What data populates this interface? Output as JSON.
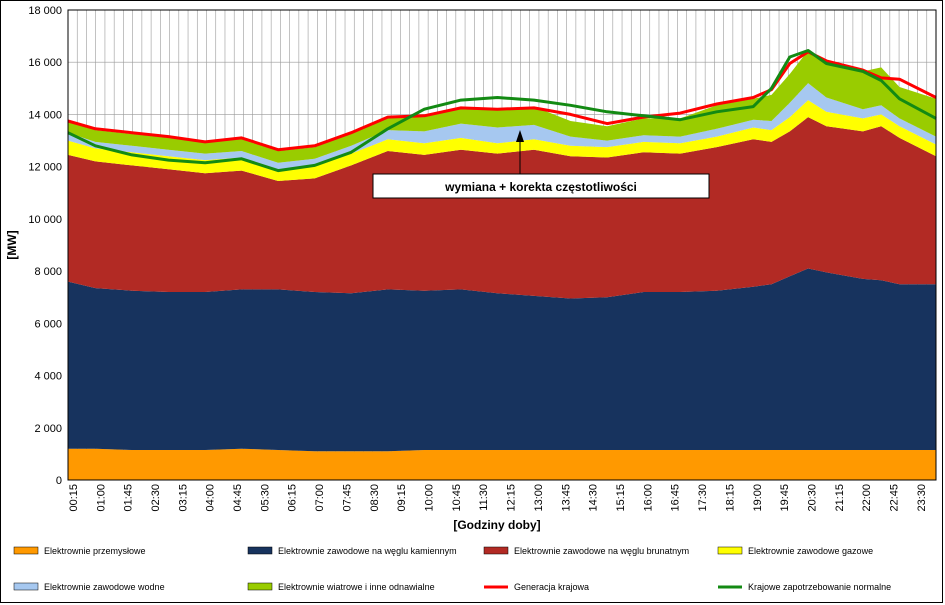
{
  "chart_data": {
    "type": "area",
    "ylabel": "[MW]",
    "xlabel": "[Godziny doby]",
    "ylim": [
      0,
      18000
    ],
    "yticks": [
      0,
      2000,
      4000,
      6000,
      8000,
      10000,
      12000,
      14000,
      16000,
      18000
    ],
    "ytick_labels": [
      "0",
      "2 000",
      "4 000",
      "6 000",
      "8 000",
      "10 000",
      "12 000",
      "14 000",
      "16 000",
      "18 000"
    ],
    "xtick_labels": [
      "00:15",
      "01:00",
      "01:45",
      "02:30",
      "03:15",
      "04:00",
      "04:45",
      "05:30",
      "06:15",
      "07:00",
      "07:45",
      "08:30",
      "09:15",
      "10:00",
      "10:45",
      "11:30",
      "12:15",
      "13:00",
      "13:45",
      "14:30",
      "15:15",
      "16:00",
      "16:45",
      "17:30",
      "18:15",
      "19:00",
      "19:45",
      "20:30",
      "21:15",
      "22:00",
      "22:45",
      "23:30"
    ],
    "x_hours": [
      0.25,
      1,
      2,
      3,
      4,
      5,
      6,
      7,
      8,
      9,
      10,
      11,
      12,
      13,
      14,
      15,
      16,
      17,
      18,
      19,
      19.5,
      20,
      20.5,
      21,
      22,
      22.5,
      23,
      24
    ],
    "stacks": [
      {
        "name": "Elektrownie przemysłowe",
        "color": "#ff9900",
        "values": [
          1200,
          1200,
          1150,
          1150,
          1150,
          1200,
          1150,
          1100,
          1100,
          1100,
          1150,
          1150,
          1150,
          1150,
          1150,
          1150,
          1150,
          1150,
          1150,
          1150,
          1150,
          1150,
          1150,
          1150,
          1150,
          1150,
          1150,
          1150
        ]
      },
      {
        "name": "Elektrownie zawodowe na węglu kamiennym",
        "color": "#17335e",
        "values": [
          6400,
          6150,
          6100,
          6050,
          6050,
          6100,
          6150,
          6100,
          6050,
          6200,
          6100,
          6150,
          6000,
          5900,
          5800,
          5850,
          6050,
          6050,
          6100,
          6250,
          6350,
          6650,
          6950,
          6800,
          6550,
          6500,
          6350,
          6350
        ]
      },
      {
        "name": "Elektrownie zawodowe na węglu brunatnym",
        "color": "#b22a24",
        "values": [
          4850,
          4850,
          4800,
          4700,
          4550,
          4550,
          4150,
          4350,
          4900,
          5300,
          5200,
          5350,
          5350,
          5600,
          5450,
          5350,
          5350,
          5300,
          5500,
          5650,
          5450,
          5550,
          5800,
          5600,
          5650,
          5900,
          5600,
          4900
        ]
      },
      {
        "name": "Elektrownie zawodowe gazowe",
        "color": "#ffff00",
        "values": [
          550,
          500,
          500,
          500,
          500,
          500,
          450,
          500,
          450,
          450,
          450,
          450,
          400,
          400,
          400,
          400,
          400,
          400,
          400,
          450,
          450,
          550,
          650,
          550,
          500,
          450,
          450,
          450
        ]
      },
      {
        "name": "Elektrownie zawodowe wodne",
        "color": "#a6c8f0",
        "values": [
          300,
          250,
          250,
          250,
          250,
          250,
          250,
          250,
          300,
          350,
          450,
          550,
          600,
          550,
          350,
          250,
          250,
          250,
          300,
          300,
          350,
          550,
          650,
          550,
          350,
          350,
          300,
          300
        ]
      },
      {
        "name": "Elektrownie wiatrowe i inne odnawialne",
        "color": "#99cc00",
        "values": [
          450,
          450,
          450,
          450,
          450,
          450,
          450,
          450,
          450,
          500,
          550,
          650,
          650,
          700,
          600,
          550,
          650,
          700,
          900,
          800,
          1000,
          1100,
          1250,
          1250,
          1450,
          1450,
          1200,
          1450
        ]
      }
    ],
    "lines": [
      {
        "name": "Generacja krajowa",
        "color": "#ff0000",
        "values": [
          13750,
          13450,
          13300,
          13150,
          12950,
          13100,
          12650,
          12800,
          13300,
          13900,
          13950,
          14250,
          14200,
          14250,
          14000,
          13650,
          13900,
          14050,
          14400,
          14650,
          14950,
          15950,
          16400,
          16050,
          15700,
          15400,
          15350,
          14650
        ]
      },
      {
        "name": "Krajowe zapotrzebowanie normalne",
        "color": "#138a13",
        "values": [
          13300,
          12800,
          12450,
          12250,
          12150,
          12300,
          11850,
          12050,
          12550,
          13450,
          14200,
          14550,
          14650,
          14550,
          14350,
          14100,
          13950,
          13800,
          14100,
          14300,
          15000,
          16200,
          16450,
          15950,
          15650,
          15300,
          14600,
          13850
        ]
      }
    ],
    "annotation": "wymiana + korekta częstotliwości"
  }
}
